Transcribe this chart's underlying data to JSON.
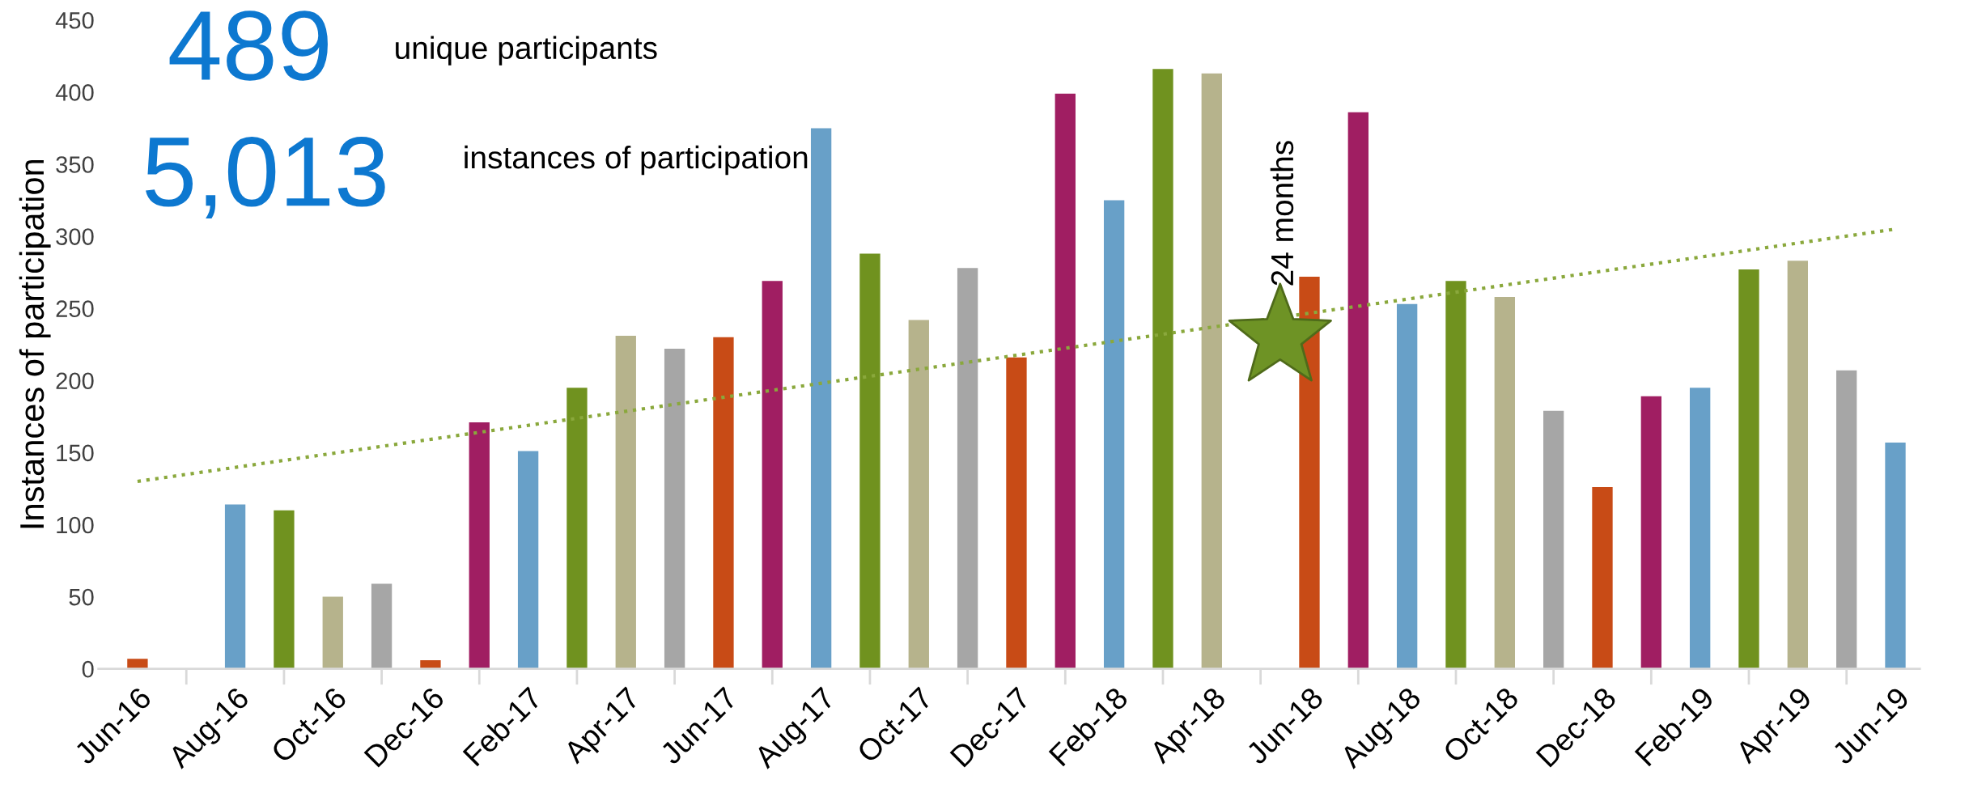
{
  "chart_data": {
    "type": "bar",
    "ylabel": "Instances of participation",
    "categories": [
      "Jun-16",
      null,
      "Aug-16",
      null,
      "Oct-16",
      null,
      "Dec-16",
      null,
      "Feb-17",
      null,
      "Apr-17",
      null,
      "Jun-17",
      null,
      "Aug-17",
      null,
      "Oct-17",
      null,
      "Dec-17",
      null,
      "Feb-18",
      null,
      "Apr-18",
      null,
      "Jun-18",
      null,
      "Aug-18",
      null,
      "Oct-18",
      null,
      "Dec-18",
      null,
      "Feb-19",
      null,
      "Apr-19",
      null,
      "Jun-19"
    ],
    "series": [
      {
        "values": [
          7,
          0,
          114,
          110,
          50,
          59,
          6,
          171,
          151,
          195,
          231,
          222,
          230,
          269,
          375,
          288,
          242,
          278,
          216,
          399,
          325,
          416,
          413,
          null,
          272,
          386,
          253,
          269,
          258,
          179,
          126,
          189,
          195,
          277,
          283,
          207,
          157
        ],
        "colors": [
          "#c84b16",
          "#a01e62",
          "#68a0c8",
          "#70921f",
          "#b6b38c",
          "#a6a6a6",
          "#c84b16",
          "#a01e62",
          "#68a0c8",
          "#70921f",
          "#b6b38c",
          "#a6a6a6",
          "#c84b16",
          "#a01e62",
          "#68a0c8",
          "#70921f",
          "#b6b38c",
          "#a6a6a6",
          "#c84b16",
          "#a01e62",
          "#68a0c8",
          "#70921f",
          "#b6b38c",
          "#a6a6a6",
          "#c84b16",
          "#a01e62",
          "#68a0c8",
          "#70921f",
          "#b6b38c",
          "#a6a6a6",
          "#c84b16",
          "#a01e62",
          "#68a0c8",
          "#70921f",
          "#b6b38c",
          "#a6a6a6",
          "#68a0c8"
        ]
      },
      {
        "type": "line",
        "line_style": "dotted",
        "color": "#8aa83c",
        "values": [
          130,
          null,
          null,
          null,
          null,
          null,
          null,
          null,
          null,
          null,
          null,
          null,
          null,
          null,
          null,
          null,
          null,
          null,
          null,
          null,
          null,
          null,
          null,
          null,
          null,
          null,
          null,
          null,
          null,
          null,
          null,
          null,
          null,
          null,
          null,
          null,
          305
        ]
      }
    ],
    "ylim": [
      0,
      450
    ],
    "yticks": [
      0,
      50,
      100,
      150,
      200,
      250,
      300,
      350,
      400,
      450
    ],
    "grid": false,
    "legend": false,
    "annotations": [
      "489",
      "unique participants",
      "5,013",
      "instances of participation",
      "24 months"
    ]
  }
}
